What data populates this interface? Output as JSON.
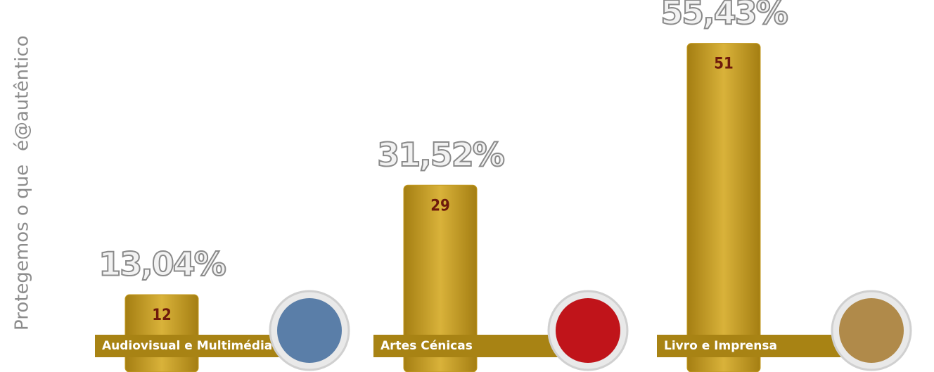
{
  "chart_data": {
    "type": "bar",
    "categories": [
      "Audiovisual e Multimédia",
      "Artes Cénicas",
      "Livro e Imprensa"
    ],
    "values": [
      12,
      29,
      51
    ],
    "shares": {
      "values": [
        13.04,
        31.52,
        55.43
      ],
      "value_labels": [
        "13,04%",
        "31,52%",
        "55,43%"
      ]
    },
    "color": "#c49a1e",
    "ylim": [
      0,
      55
    ]
  },
  "side_text": [
    "Protegemos o que",
    "é@autêntico"
  ]
}
